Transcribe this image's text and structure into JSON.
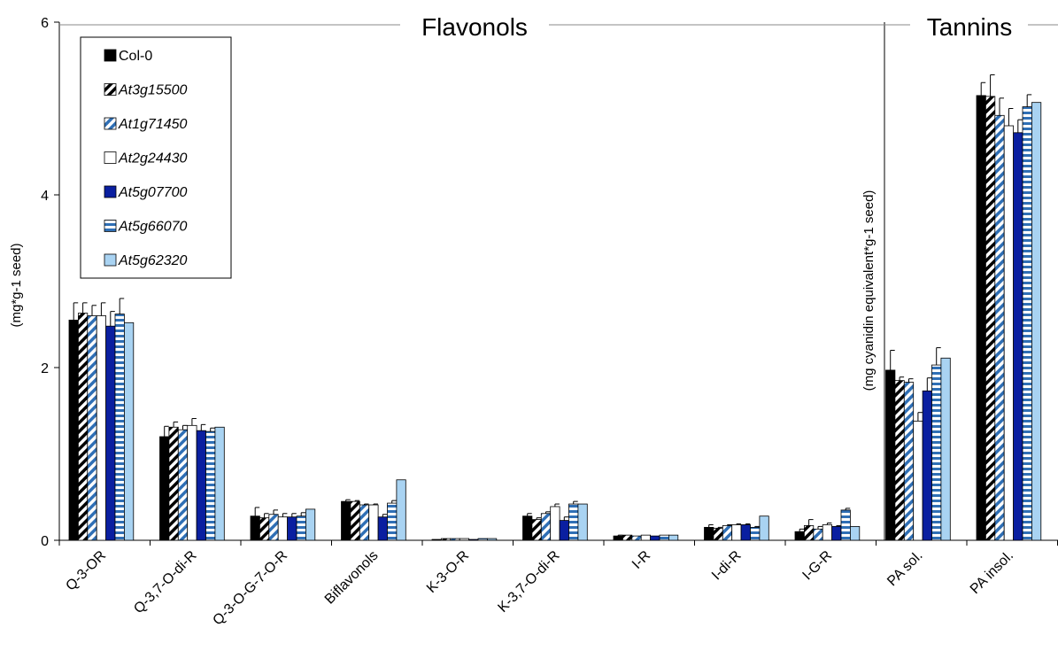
{
  "chart_data": {
    "type": "bar",
    "sections": [
      {
        "label": "Flavonols"
      },
      {
        "label": "Tannins"
      }
    ],
    "ylabel_left": "(mg*g-1 seed)",
    "ylabel_right": "(mg cyanidin equivalent*g-1 seed)",
    "ylim": [
      0,
      6
    ],
    "yticks": [
      "0",
      "2",
      "4",
      "6"
    ],
    "categories": [
      "Q-3-OR",
      "Q-3,7-O-di-R",
      "Q-3-O-G-7-O-R",
      "Biflavonols",
      "K-3-O-R",
      "K-3,7-O-di-R",
      "I-R",
      "I-di-R",
      "I-G-R",
      "PA sol.",
      "PA insol."
    ],
    "series": [
      {
        "name": "Col-0",
        "color": "#000000",
        "pattern": "solid-black",
        "values": [
          2.55,
          1.2,
          0.28,
          0.45,
          0.01,
          0.28,
          0.05,
          0.15,
          0.1,
          1.97,
          5.15
        ],
        "errors": [
          0.2,
          0.12,
          0.1,
          0.02,
          0.0,
          0.03,
          0.01,
          0.03,
          0.03,
          0.23,
          0.15
        ]
      },
      {
        "name": "At3g15500",
        "color": "#000000",
        "pattern": "diag-black",
        "values": [
          2.63,
          1.31,
          0.26,
          0.45,
          0.02,
          0.24,
          0.06,
          0.14,
          0.17,
          1.85,
          5.14
        ],
        "errors": [
          0.12,
          0.06,
          0.05,
          0.01,
          0.0,
          0.02,
          0.0,
          0.01,
          0.07,
          0.04,
          0.25
        ]
      },
      {
        "name": "At1g71450",
        "color": "#2f6fb5",
        "pattern": "diag-blue",
        "values": [
          2.6,
          1.28,
          0.3,
          0.41,
          0.02,
          0.31,
          0.05,
          0.17,
          0.13,
          1.83,
          4.92
        ],
        "errors": [
          0.12,
          0.05,
          0.05,
          0.01,
          0.0,
          0.02,
          0.0,
          0.01,
          0.03,
          0.04,
          0.2
        ]
      },
      {
        "name": "At2g24430",
        "color": "#ffffff",
        "pattern": "white",
        "values": [
          2.6,
          1.33,
          0.27,
          0.41,
          0.02,
          0.39,
          0.06,
          0.18,
          0.18,
          1.38,
          4.8
        ],
        "errors": [
          0.15,
          0.08,
          0.04,
          0.01,
          0.0,
          0.03,
          0.0,
          0.01,
          0.02,
          0.1,
          0.2
        ]
      },
      {
        "name": "At5g07700",
        "color": "#0a1fa0",
        "pattern": "solid-navy",
        "values": [
          2.48,
          1.27,
          0.27,
          0.27,
          0.01,
          0.23,
          0.05,
          0.18,
          0.16,
          1.73,
          4.72
        ],
        "errors": [
          0.17,
          0.07,
          0.04,
          0.03,
          0.0,
          0.04,
          0.0,
          0.01,
          0.01,
          0.15,
          0.15
        ]
      },
      {
        "name": "At5g66070",
        "color": "#2f6fb5",
        "pattern": "hstripe-blue",
        "values": [
          2.62,
          1.26,
          0.28,
          0.43,
          0.02,
          0.42,
          0.06,
          0.15,
          0.35,
          2.03,
          5.02
        ],
        "errors": [
          0.18,
          0.04,
          0.04,
          0.03,
          0.0,
          0.03,
          0.0,
          0.01,
          0.02,
          0.2,
          0.14
        ]
      },
      {
        "name": "At5g62320",
        "color": "#a9d3f2",
        "pattern": "solid-lightblue",
        "values": [
          2.52,
          1.31,
          0.36,
          0.7,
          0.02,
          0.42,
          0.06,
          0.28,
          0.16,
          2.11,
          5.07
        ],
        "errors": [
          0,
          0,
          0,
          0,
          0,
          0,
          0,
          0,
          0,
          0,
          0
        ]
      }
    ],
    "legend_position": "top-left",
    "grid": false
  }
}
